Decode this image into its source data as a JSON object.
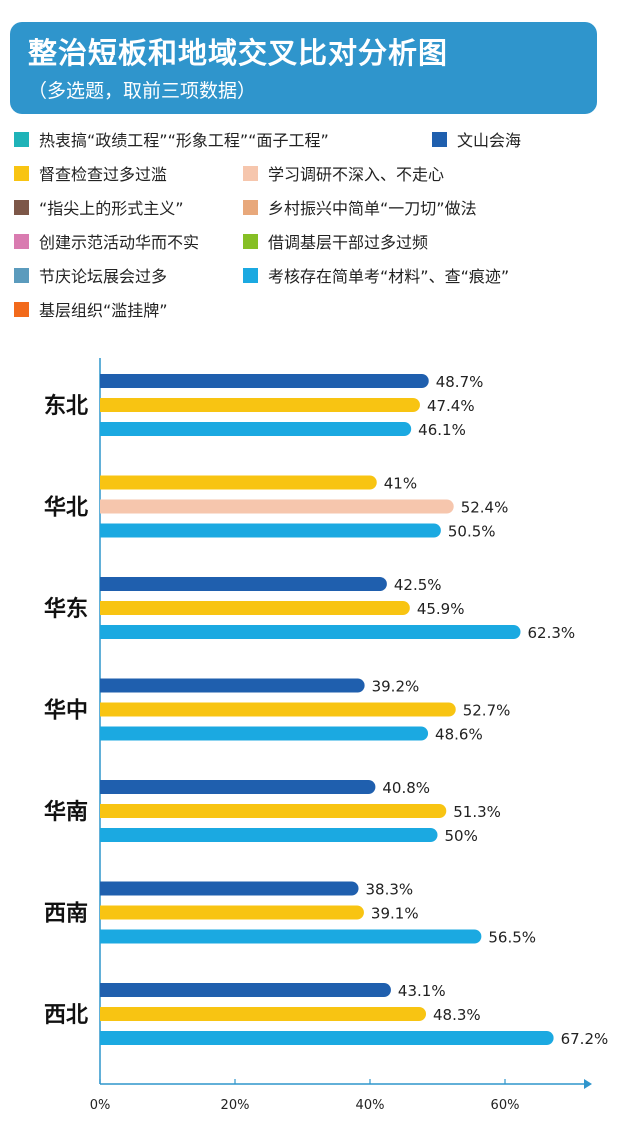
{
  "header": {
    "title": "整治短板和地域交叉比对分析图",
    "subtitle": "（多选题，取前三项数据）"
  },
  "legend": [
    {
      "label": "热衷搞“政绩工程”“形象工程”“面子工程”",
      "color": "#1fb3b8"
    },
    {
      "label": "文山会海",
      "color": "#1f5fae"
    },
    {
      "label": "督查检查过多过滥",
      "color": "#f8c412"
    },
    {
      "label": "学习调研不深入、不走心",
      "color": "#f6c6ad"
    },
    {
      "label": "“指尖上的形式主义”",
      "color": "#7d5748"
    },
    {
      "label": "乡村振兴中简单“一刀切”做法",
      "color": "#e8a87b"
    },
    {
      "label": "创建示范活动华而不实",
      "color": "#d97bb0"
    },
    {
      "label": "借调基层干部过多过频",
      "color": "#86bf25"
    },
    {
      "label": "节庆论坛展会过多",
      "color": "#5b9bbd"
    },
    {
      "label": "考核存在简单考“材料”、查“痕迹”",
      "color": "#1ba9e1"
    },
    {
      "label": "基层组织“滥挂牌”",
      "color": "#f26a1b"
    }
  ],
  "chart_data": {
    "type": "bar",
    "orientation": "horizontal",
    "title": "整治短板和地域交叉比对分析图",
    "subtitle": "（多选题，取前三项数据）",
    "categories": [
      "东北",
      "华北",
      "华东",
      "华中",
      "华南",
      "西南",
      "西北"
    ],
    "xlim": [
      0,
      70
    ],
    "x_ticks": [
      "0%",
      "20%",
      "40%",
      "60%"
    ],
    "x_tick_values": [
      0,
      20,
      40,
      60
    ],
    "grid": false,
    "legend_position": "top",
    "groups": [
      {
        "category": "东北",
        "bars": [
          {
            "series": "文山会海",
            "value": 48.7,
            "label": "48.7%"
          },
          {
            "series": "督查检查过多过滥",
            "value": 47.4,
            "label": "47.4%"
          },
          {
            "series": "考核存在简单考“材料”、查“痕迹”",
            "value": 46.1,
            "label": "46.1%"
          }
        ]
      },
      {
        "category": "华北",
        "bars": [
          {
            "series": "督查检查过多过滥",
            "value": 41,
            "label": "41%"
          },
          {
            "series": "学习调研不深入、不走心",
            "value": 52.4,
            "label": "52.4%"
          },
          {
            "series": "考核存在简单考“材料”、查“痕迹”",
            "value": 50.5,
            "label": "50.5%"
          }
        ]
      },
      {
        "category": "华东",
        "bars": [
          {
            "series": "文山会海",
            "value": 42.5,
            "label": "42.5%"
          },
          {
            "series": "督查检查过多过滥",
            "value": 45.9,
            "label": "45.9%"
          },
          {
            "series": "考核存在简单考“材料”、查“痕迹”",
            "value": 62.3,
            "label": "62.3%"
          }
        ]
      },
      {
        "category": "华中",
        "bars": [
          {
            "series": "文山会海",
            "value": 39.2,
            "label": "39.2%"
          },
          {
            "series": "督查检查过多过滥",
            "value": 52.7,
            "label": "52.7%"
          },
          {
            "series": "考核存在简单考“材料”、查“痕迹”",
            "value": 48.6,
            "label": "48.6%"
          }
        ]
      },
      {
        "category": "华南",
        "bars": [
          {
            "series": "文山会海",
            "value": 40.8,
            "label": "40.8%"
          },
          {
            "series": "督查检查过多过滥",
            "value": 51.3,
            "label": "51.3%"
          },
          {
            "series": "考核存在简单考“材料”、查“痕迹”",
            "value": 50,
            "label": "50%"
          }
        ]
      },
      {
        "category": "西南",
        "bars": [
          {
            "series": "文山会海",
            "value": 38.3,
            "label": "38.3%"
          },
          {
            "series": "督查检查过多过滥",
            "value": 39.1,
            "label": "39.1%"
          },
          {
            "series": "考核存在简单考“材料”、查“痕迹”",
            "value": 56.5,
            "label": "56.5%"
          }
        ]
      },
      {
        "category": "西北",
        "bars": [
          {
            "series": "文山会海",
            "value": 43.1,
            "label": "43.1%"
          },
          {
            "series": "督查检查过多过滥",
            "value": 48.3,
            "label": "48.3%"
          },
          {
            "series": "考核存在简单考“材料”、查“痕迹”",
            "value": 67.2,
            "label": "67.2%"
          }
        ]
      }
    ]
  }
}
